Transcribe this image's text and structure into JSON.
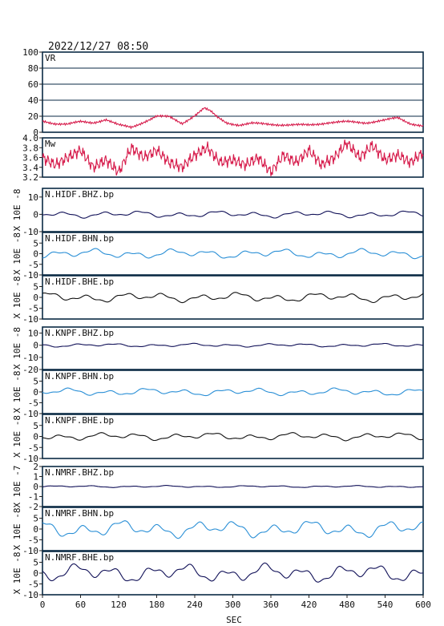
{
  "header": {
    "timestamp": "2022/12/27  08:50"
  },
  "x_axis": {
    "label": "SEC",
    "ticks": [
      "0",
      "60",
      "120",
      "180",
      "240",
      "300",
      "360",
      "420",
      "480",
      "540",
      "600"
    ]
  },
  "colors": {
    "vr": "#d61a4a",
    "mw": "#d61a4a",
    "dark_trace": "#111158",
    "blue_trace": "#1565c0",
    "light_trace": "#2a8fd6",
    "frame": "#0a2a44"
  },
  "chart_data": [
    {
      "type": "line",
      "title": "VR",
      "ylim": [
        0,
        100
      ],
      "yticks": [
        "100",
        "80",
        "60",
        "40",
        "20",
        "0"
      ],
      "grid": true,
      "color": "#d61a4a",
      "x": [
        0,
        20,
        40,
        60,
        80,
        100,
        120,
        140,
        160,
        180,
        200,
        220,
        240,
        255,
        265,
        275,
        290,
        310,
        330,
        360,
        390,
        420,
        450,
        480,
        510,
        540,
        560,
        580,
        600
      ],
      "values": [
        14,
        11,
        10,
        13,
        12,
        16,
        9,
        6,
        13,
        20,
        19,
        11,
        21,
        30,
        26,
        19,
        12,
        9,
        11,
        10,
        9,
        9,
        12,
        13,
        12,
        15,
        18,
        11,
        8
      ]
    },
    {
      "type": "line",
      "title": "Mw",
      "ylim": [
        3.2,
        4.0
      ],
      "yticks": [
        "4.0",
        "3.8",
        "3.6",
        "3.4",
        "3.2"
      ],
      "grid": false,
      "color": "#d61a4a",
      "x": [
        0,
        20,
        40,
        60,
        80,
        100,
        120,
        140,
        160,
        180,
        200,
        220,
        240,
        260,
        280,
        300,
        320,
        340,
        360,
        380,
        400,
        420,
        440,
        460,
        480,
        500,
        520,
        540,
        560,
        580,
        600
      ],
      "values": [
        3.6,
        3.45,
        3.6,
        3.75,
        3.4,
        3.55,
        3.3,
        3.8,
        3.6,
        3.75,
        3.5,
        3.4,
        3.65,
        3.8,
        3.5,
        3.55,
        3.45,
        3.6,
        3.3,
        3.65,
        3.5,
        3.75,
        3.45,
        3.6,
        3.9,
        3.6,
        3.85,
        3.55,
        3.65,
        3.5,
        3.7
      ]
    },
    {
      "type": "line",
      "title": "N.HIDF.BHZ.bp",
      "ylabel": "X 10E -8",
      "ylim": [
        -10,
        15
      ],
      "yticks": [
        "10",
        "0",
        "-10"
      ],
      "color": "#111158",
      "amp": 1.6
    },
    {
      "type": "line",
      "title": "N.HIDF.BHN.bp",
      "ylabel": "X 10E -8",
      "ylim": [
        -10,
        10
      ],
      "yticks": [
        "5",
        "0",
        "-5",
        "-10"
      ],
      "color": "#2a8fd6",
      "amp": 1.8
    },
    {
      "type": "line",
      "title": "N.HIDF.BHE.bp",
      "ylabel": "X 10E -8",
      "ylim": [
        -10,
        10
      ],
      "yticks": [
        "5",
        "0",
        "-5",
        "-10"
      ],
      "color": "#111111",
      "amp": 1.8
    },
    {
      "type": "line",
      "title": "N.KNPF.BHZ.bp",
      "ylabel": "X 10E -8",
      "ylim": [
        -20,
        15
      ],
      "yticks": [
        "10",
        "0",
        "-10",
        "-20"
      ],
      "color": "#111158",
      "amp": 1.2
    },
    {
      "type": "line",
      "title": "N.KNPF.BHN.bp",
      "ylabel": "X 10E -8",
      "ylim": [
        -10,
        10
      ],
      "yticks": [
        "5",
        "0",
        "-5",
        "-10"
      ],
      "color": "#2a8fd6",
      "amp": 1.4
    },
    {
      "type": "line",
      "title": "N.KNPF.BHE.bp",
      "ylabel": "X 10E -8",
      "ylim": [
        -10,
        10
      ],
      "yticks": [
        "5",
        "0",
        "-5",
        "-10"
      ],
      "color": "#111111",
      "amp": 1.4
    },
    {
      "type": "line",
      "title": "N.NMRF.BHZ.bp",
      "ylabel": "X 10E -7",
      "ylim": [
        -2,
        2
      ],
      "yticks": [
        "2",
        "1",
        "0",
        "-1",
        "-2"
      ],
      "color": "#111158",
      "amp": 0.08
    },
    {
      "type": "line",
      "title": "N.NMRF.BHN.bp",
      "ylabel": "X 10E -8",
      "ylim": [
        -10,
        10
      ],
      "yticks": [
        "5",
        "0",
        "-5",
        "-10"
      ],
      "color": "#2a8fd6",
      "amp": 3.2
    },
    {
      "type": "line",
      "title": "N.NMRF.BHE.bp",
      "ylabel": "X 10E -8",
      "ylim": [
        -10,
        10
      ],
      "yticks": [
        "5",
        "0",
        "-5",
        "-10"
      ],
      "color": "#111158",
      "amp": 3.4
    }
  ]
}
